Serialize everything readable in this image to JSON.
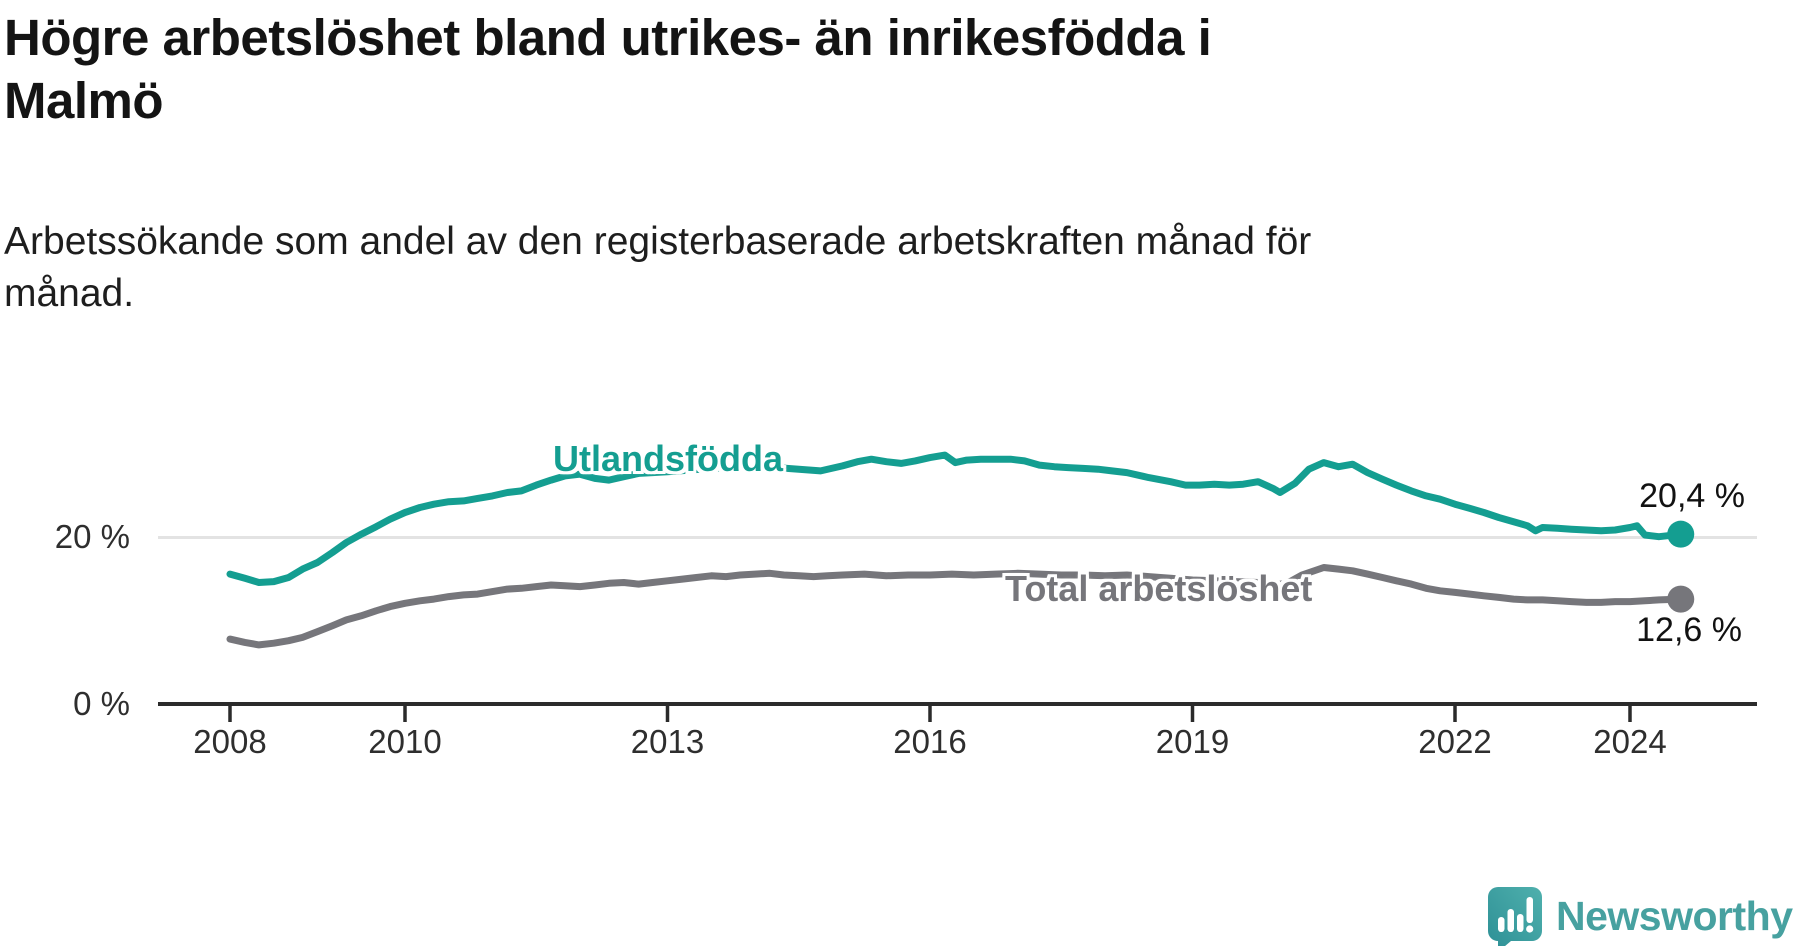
{
  "header": {
    "title_lines": [
      "Högre arbetslöshet bland utrikes- än inrikesfödda i",
      "Malmö"
    ],
    "subtitle_lines": [
      "Arbetssökande som andel av den registerbaserade arbetskraften månad för",
      "månad."
    ]
  },
  "branding": {
    "logo_text": "Newsworthy",
    "logo_icon": "newsworthy-speech-bubble-chart-icon",
    "logo_color": "#47a1a0",
    "logo_gradient": [
      "#4fb0ad",
      "#2d8f95"
    ]
  },
  "colors": {
    "background": "#ffffff",
    "gridline": "#e3e3e3",
    "axis": "#2b2b2b",
    "text_dark": "#141414",
    "tick_text": "#2e2e2e"
  },
  "chart_data": {
    "type": "line",
    "title": "Högre arbetslöshet bland utrikes- än inrikesfödda i Malmö",
    "subtitle": "Arbetssökande som andel av den registerbaserade arbetskraften månad för månad.",
    "unit": "%",
    "x_domain": [
      2008.0,
      2024.67
    ],
    "ylim": [
      0,
      34
    ],
    "grid": "y-only",
    "legend_position": "inline-labels",
    "y_ticks": [
      {
        "value": 0,
        "label": "0 %"
      },
      {
        "value": 20,
        "label": "20 %"
      }
    ],
    "x_ticks": [
      {
        "value": 2008,
        "label": "2008"
      },
      {
        "value": 2010,
        "label": "2010"
      },
      {
        "value": 2013,
        "label": "2013"
      },
      {
        "value": 2016,
        "label": "2016"
      },
      {
        "value": 2019,
        "label": "2019"
      },
      {
        "value": 2022,
        "label": "2022"
      },
      {
        "value": 2024,
        "label": "2024"
      }
    ],
    "series": [
      {
        "name": "Utlandsfödda",
        "color": "#149e91",
        "end_value": 20.4,
        "end_label": "20,4 %",
        "points": [
          [
            2008.0,
            15.6
          ],
          [
            2008.17,
            15.1
          ],
          [
            2008.33,
            14.6
          ],
          [
            2008.5,
            14.7
          ],
          [
            2008.67,
            15.2
          ],
          [
            2008.83,
            16.2
          ],
          [
            2009.0,
            17.0
          ],
          [
            2009.17,
            18.2
          ],
          [
            2009.33,
            19.4
          ],
          [
            2009.5,
            20.4
          ],
          [
            2009.67,
            21.3
          ],
          [
            2009.83,
            22.2
          ],
          [
            2010.0,
            23.0
          ],
          [
            2010.17,
            23.6
          ],
          [
            2010.33,
            24.0
          ],
          [
            2010.5,
            24.3
          ],
          [
            2010.67,
            24.4
          ],
          [
            2010.83,
            24.7
          ],
          [
            2011.0,
            25.0
          ],
          [
            2011.17,
            25.4
          ],
          [
            2011.33,
            25.6
          ],
          [
            2011.5,
            26.3
          ],
          [
            2011.67,
            26.9
          ],
          [
            2011.83,
            27.4
          ],
          [
            2012.0,
            27.6
          ],
          [
            2012.17,
            27.1
          ],
          [
            2012.33,
            26.9
          ],
          [
            2012.5,
            27.3
          ],
          [
            2012.67,
            27.7
          ],
          [
            2012.83,
            27.8
          ],
          [
            2013.0,
            27.9
          ],
          [
            2013.25,
            28.1
          ],
          [
            2013.5,
            28.3
          ],
          [
            2013.75,
            28.4
          ],
          [
            2014.0,
            28.5
          ],
          [
            2014.25,
            28.4
          ],
          [
            2014.5,
            28.2
          ],
          [
            2014.75,
            28.0
          ],
          [
            2015.0,
            28.6
          ],
          [
            2015.17,
            29.1
          ],
          [
            2015.33,
            29.4
          ],
          [
            2015.5,
            29.1
          ],
          [
            2015.67,
            28.9
          ],
          [
            2015.83,
            29.2
          ],
          [
            2016.0,
            29.6
          ],
          [
            2016.17,
            29.9
          ],
          [
            2016.29,
            29.0
          ],
          [
            2016.42,
            29.3
          ],
          [
            2016.58,
            29.4
          ],
          [
            2016.75,
            29.4
          ],
          [
            2016.92,
            29.4
          ],
          [
            2017.08,
            29.2
          ],
          [
            2017.25,
            28.7
          ],
          [
            2017.42,
            28.5
          ],
          [
            2017.58,
            28.4
          ],
          [
            2017.75,
            28.3
          ],
          [
            2017.92,
            28.2
          ],
          [
            2018.08,
            28.0
          ],
          [
            2018.25,
            27.8
          ],
          [
            2018.5,
            27.2
          ],
          [
            2018.75,
            26.7
          ],
          [
            2018.92,
            26.3
          ],
          [
            2019.08,
            26.3
          ],
          [
            2019.25,
            26.4
          ],
          [
            2019.42,
            26.3
          ],
          [
            2019.58,
            26.4
          ],
          [
            2019.75,
            26.7
          ],
          [
            2019.92,
            25.9
          ],
          [
            2020.0,
            25.4
          ],
          [
            2020.17,
            26.5
          ],
          [
            2020.33,
            28.2
          ],
          [
            2020.5,
            29.0
          ],
          [
            2020.67,
            28.5
          ],
          [
            2020.83,
            28.8
          ],
          [
            2021.0,
            27.8
          ],
          [
            2021.17,
            27.0
          ],
          [
            2021.33,
            26.3
          ],
          [
            2021.5,
            25.6
          ],
          [
            2021.67,
            25.0
          ],
          [
            2021.83,
            24.6
          ],
          [
            2022.0,
            24.0
          ],
          [
            2022.17,
            23.5
          ],
          [
            2022.33,
            23.0
          ],
          [
            2022.5,
            22.4
          ],
          [
            2022.67,
            21.9
          ],
          [
            2022.83,
            21.4
          ],
          [
            2022.92,
            20.8
          ],
          [
            2023.0,
            21.2
          ],
          [
            2023.17,
            21.1
          ],
          [
            2023.33,
            21.0
          ],
          [
            2023.5,
            20.9
          ],
          [
            2023.67,
            20.8
          ],
          [
            2023.83,
            20.9
          ],
          [
            2024.0,
            21.2
          ],
          [
            2024.08,
            21.4
          ],
          [
            2024.17,
            20.3
          ],
          [
            2024.33,
            20.1
          ],
          [
            2024.42,
            20.2
          ],
          [
            2024.58,
            20.4
          ]
        ]
      },
      {
        "name": "Total arbetslöshet",
        "color": "#76767b",
        "end_value": 12.6,
        "end_label": "12,6 %",
        "points": [
          [
            2008.0,
            7.8
          ],
          [
            2008.17,
            7.4
          ],
          [
            2008.33,
            7.1
          ],
          [
            2008.5,
            7.3
          ],
          [
            2008.67,
            7.6
          ],
          [
            2008.83,
            8.0
          ],
          [
            2009.0,
            8.7
          ],
          [
            2009.17,
            9.4
          ],
          [
            2009.33,
            10.1
          ],
          [
            2009.5,
            10.6
          ],
          [
            2009.67,
            11.2
          ],
          [
            2009.83,
            11.7
          ],
          [
            2010.0,
            12.1
          ],
          [
            2010.17,
            12.4
          ],
          [
            2010.33,
            12.6
          ],
          [
            2010.5,
            12.9
          ],
          [
            2010.67,
            13.1
          ],
          [
            2010.83,
            13.2
          ],
          [
            2011.0,
            13.5
          ],
          [
            2011.17,
            13.8
          ],
          [
            2011.33,
            13.9
          ],
          [
            2011.5,
            14.1
          ],
          [
            2011.67,
            14.3
          ],
          [
            2011.83,
            14.2
          ],
          [
            2012.0,
            14.1
          ],
          [
            2012.17,
            14.3
          ],
          [
            2012.33,
            14.5
          ],
          [
            2012.5,
            14.6
          ],
          [
            2012.67,
            14.4
          ],
          [
            2012.83,
            14.6
          ],
          [
            2013.0,
            14.8
          ],
          [
            2013.17,
            15.0
          ],
          [
            2013.33,
            15.2
          ],
          [
            2013.5,
            15.4
          ],
          [
            2013.67,
            15.3
          ],
          [
            2013.83,
            15.5
          ],
          [
            2014.0,
            15.6
          ],
          [
            2014.17,
            15.7
          ],
          [
            2014.33,
            15.5
          ],
          [
            2014.5,
            15.4
          ],
          [
            2014.67,
            15.3
          ],
          [
            2014.83,
            15.4
          ],
          [
            2015.0,
            15.5
          ],
          [
            2015.25,
            15.6
          ],
          [
            2015.5,
            15.4
          ],
          [
            2015.75,
            15.5
          ],
          [
            2016.0,
            15.5
          ],
          [
            2016.25,
            15.6
          ],
          [
            2016.5,
            15.5
          ],
          [
            2016.75,
            15.6
          ],
          [
            2017.0,
            15.7
          ],
          [
            2017.25,
            15.6
          ],
          [
            2017.5,
            15.5
          ],
          [
            2017.75,
            15.5
          ],
          [
            2018.0,
            15.4
          ],
          [
            2018.25,
            15.5
          ],
          [
            2018.5,
            15.3
          ],
          [
            2018.75,
            15.1
          ],
          [
            2019.0,
            14.9
          ],
          [
            2019.25,
            14.8
          ],
          [
            2019.5,
            14.7
          ],
          [
            2019.75,
            14.6
          ],
          [
            2019.92,
            14.3
          ],
          [
            2020.08,
            14.5
          ],
          [
            2020.25,
            15.5
          ],
          [
            2020.5,
            16.4
          ],
          [
            2020.67,
            16.2
          ],
          [
            2020.83,
            16.0
          ],
          [
            2021.0,
            15.6
          ],
          [
            2021.17,
            15.2
          ],
          [
            2021.33,
            14.8
          ],
          [
            2021.5,
            14.4
          ],
          [
            2021.67,
            13.9
          ],
          [
            2021.83,
            13.6
          ],
          [
            2022.0,
            13.4
          ],
          [
            2022.17,
            13.2
          ],
          [
            2022.33,
            13.0
          ],
          [
            2022.5,
            12.8
          ],
          [
            2022.67,
            12.6
          ],
          [
            2022.83,
            12.5
          ],
          [
            2023.0,
            12.5
          ],
          [
            2023.17,
            12.4
          ],
          [
            2023.33,
            12.3
          ],
          [
            2023.5,
            12.2
          ],
          [
            2023.67,
            12.2
          ],
          [
            2023.83,
            12.3
          ],
          [
            2024.0,
            12.3
          ],
          [
            2024.17,
            12.4
          ],
          [
            2024.33,
            12.5
          ],
          [
            2024.58,
            12.6
          ]
        ]
      }
    ]
  }
}
